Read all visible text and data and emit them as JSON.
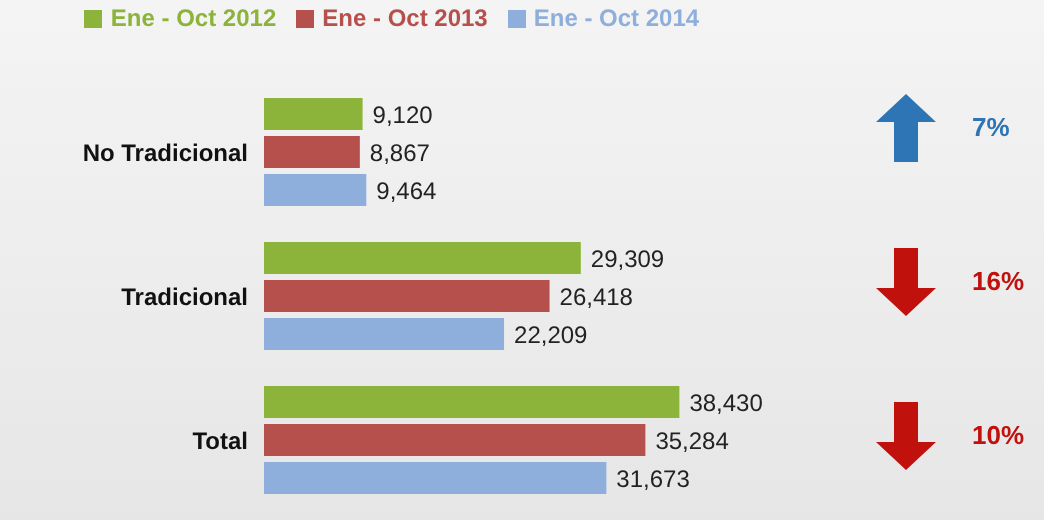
{
  "chart_data": {
    "type": "bar",
    "orientation": "horizontal",
    "categories": [
      "No Tradicional",
      "Tradicional",
      "Total"
    ],
    "series": [
      {
        "name": "Ene - Oct 2012",
        "color": "#8cb33a",
        "values": [
          9120,
          29309,
          38430
        ],
        "value_labels": [
          "9,120",
          "29,309",
          "38,430"
        ]
      },
      {
        "name": "Ene - Oct 2013",
        "color": "#b5504d",
        "values": [
          8867,
          26418,
          35284
        ],
        "value_labels": [
          "8,867",
          "26,418",
          "35,284"
        ]
      },
      {
        "name": "Ene - Oct 2014",
        "color": "#8eaedb",
        "values": [
          9464,
          22209,
          31673
        ],
        "value_labels": [
          "9,464",
          "22,209",
          "31,673"
        ]
      }
    ],
    "legend": "top",
    "grid": false,
    "annotations": [
      "7%",
      "16%",
      "10%"
    ]
  }
}
